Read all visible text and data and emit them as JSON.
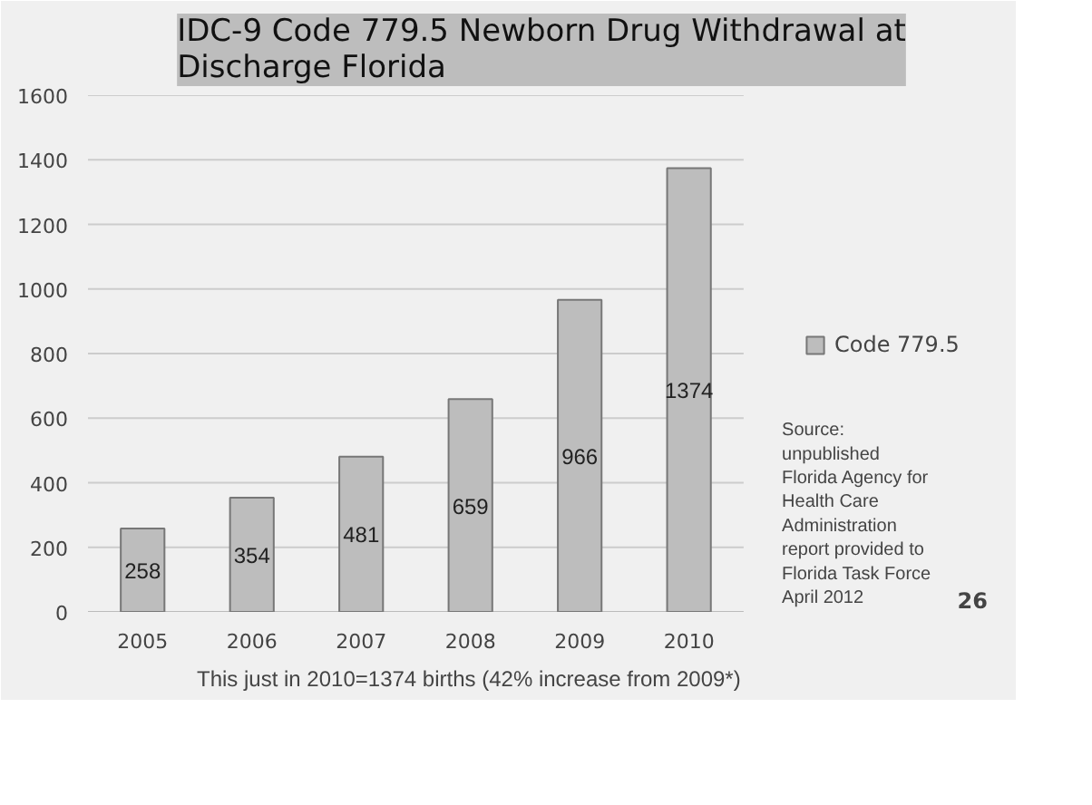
{
  "chart_data": {
    "type": "bar",
    "title": "IDC-9 Code 779.5 Newborn Drug Withdrawal at Discharge Florida",
    "categories": [
      "2005",
      "2006",
      "2007",
      "2008",
      "2009",
      "2010"
    ],
    "series": [
      {
        "name": "Code 779.5",
        "color": "#bdbdbd",
        "values": [
          258,
          354,
          481,
          659,
          966,
          1374
        ]
      }
    ],
    "ylim": [
      0,
      1600
    ],
    "yticks": [
      0,
      200,
      400,
      600,
      800,
      1000,
      1200,
      1400,
      1600
    ],
    "grid": "y",
    "legend": "right",
    "data_labels": true,
    "annotations": [
      "This just in 2010=1374 births (42% increase from 2009*)",
      "Source: unpublished Florida Agency for Health Care Administration report provided to Florida Task Force April 2012",
      "26"
    ]
  }
}
